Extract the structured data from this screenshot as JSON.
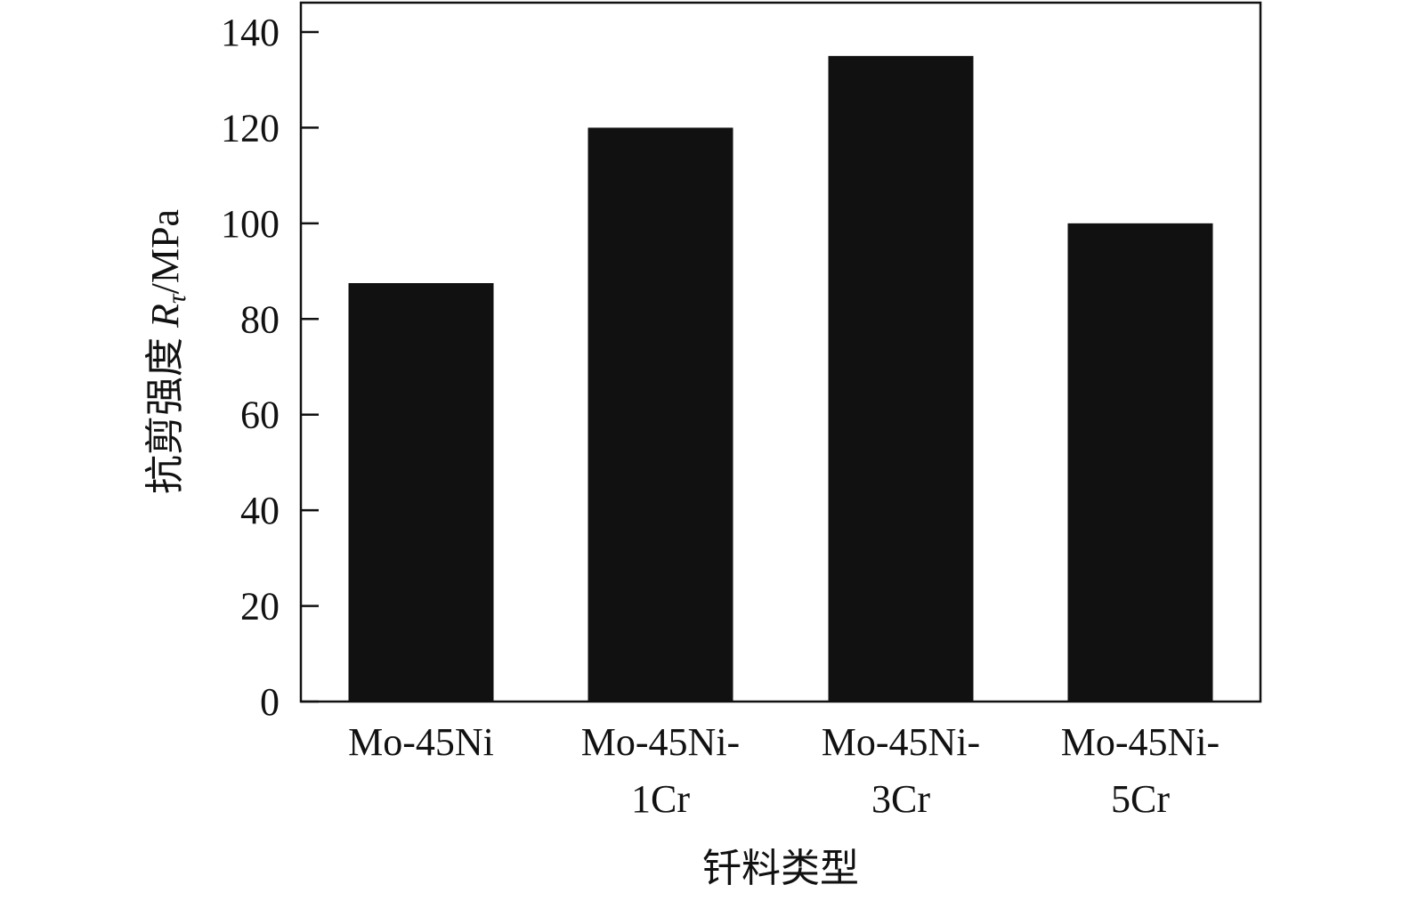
{
  "chart_data": {
    "type": "bar",
    "title": "",
    "xlabel": "钎料类型",
    "ylabel": {
      "prefix": "抗剪强度 ",
      "symbol": "R",
      "subscript": "τ",
      "unit": "/MPa"
    },
    "categories": [
      [
        "Mo-45Ni"
      ],
      [
        "Mo-45Ni-",
        "1Cr"
      ],
      [
        "Mo-45Ni-",
        "3Cr"
      ],
      [
        "Mo-45Ni-",
        "5Cr"
      ]
    ],
    "values": [
      87.5,
      120,
      135,
      100
    ],
    "ylim": [
      0,
      140
    ],
    "yticks": [
      "0",
      "20",
      "40",
      "60",
      "80",
      "100",
      "120",
      "140"
    ],
    "grid": false,
    "legend": "none",
    "bar_color": "#111111",
    "axis_color": "#111111"
  }
}
